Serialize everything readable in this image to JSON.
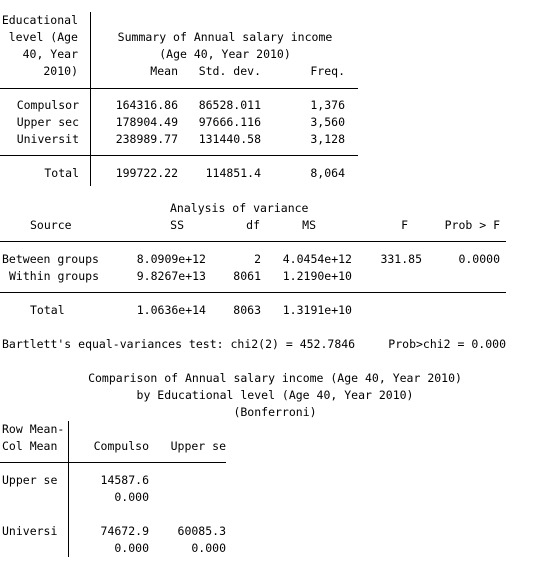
{
  "summary": {
    "rowvar_lines": [
      "Educational",
      "level (Age",
      "40, Year",
      "2010)"
    ],
    "title_lines": [
      "Summary of Annual salary income",
      "(Age 40, Year 2010)"
    ],
    "col_headers": {
      "mean": "Mean",
      "sd": "Std. dev.",
      "freq": "Freq."
    },
    "rows": [
      {
        "label": "Compulsor",
        "mean": "164316.86",
        "sd": "86528.011",
        "freq": "1,376"
      },
      {
        "label": "Upper sec",
        "mean": "178904.49",
        "sd": "97666.116",
        "freq": "3,560"
      },
      {
        "label": "Universit",
        "mean": "238989.77",
        "sd": "131440.58",
        "freq": "3,128"
      }
    ],
    "total": {
      "label": "Total",
      "mean": "199722.22",
      "sd": "114851.4",
      "freq": "8,064"
    }
  },
  "anova": {
    "title": "Analysis of variance",
    "headers": {
      "source": "Source",
      "ss": "SS",
      "df": "df",
      "ms": "MS",
      "f": "F",
      "prob": "Prob > F"
    },
    "rows": [
      {
        "source": "Between groups",
        "ss": "8.0909e+12",
        "df": "2",
        "ms": "4.0454e+12",
        "f": "331.85",
        "prob": "0.0000"
      },
      {
        "source": "Within groups",
        "ss": "9.8267e+13",
        "df": "8061",
        "ms": "1.2190e+10",
        "f": "",
        "prob": ""
      }
    ],
    "total": {
      "source": "Total",
      "ss": "1.0636e+14",
      "df": "8063",
      "ms": "1.3191e+10"
    }
  },
  "bartlett": {
    "text": "Bartlett's equal-variances test: chi2(2) = 452.7846",
    "prob": "Prob>chi2 = 0.000"
  },
  "comparison": {
    "title_lines": [
      "Comparison of Annual salary income (Age 40, Year 2010)",
      "by Educational level (Age 40, Year 2010)",
      "(Bonferroni)"
    ],
    "corner_lines": [
      "Row Mean-",
      "Col Mean"
    ],
    "col_headers": [
      "Compulso",
      "Upper se"
    ],
    "rows": [
      {
        "label": "Upper se",
        "diffs": [
          "14587.6",
          ""
        ],
        "pvals": [
          "0.000",
          ""
        ]
      },
      {
        "label": "Universi",
        "diffs": [
          "74672.9",
          "60085.3"
        ],
        "pvals": [
          "0.000",
          "0.000"
        ]
      }
    ]
  }
}
